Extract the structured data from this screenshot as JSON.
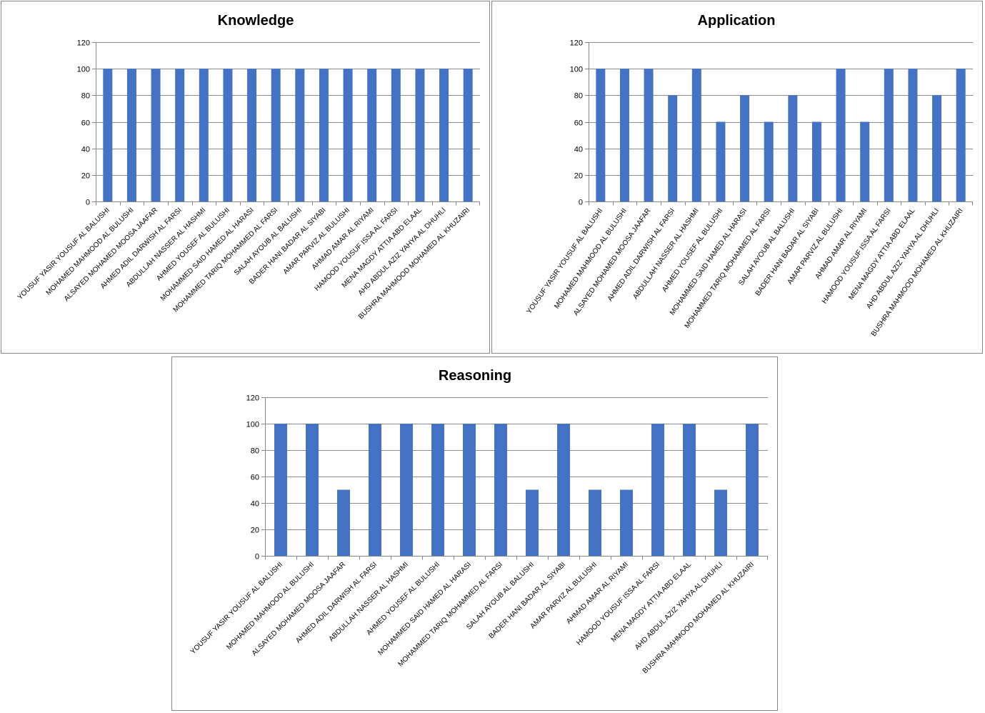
{
  "chart_data": [
    {
      "type": "bar",
      "title": "Knowledge",
      "xlabel": "",
      "ylabel": "",
      "ylim": [
        0,
        120
      ],
      "yticks": [
        0,
        20,
        40,
        60,
        80,
        100,
        120
      ],
      "grid": true,
      "color": "#4472c4",
      "categories": [
        "YOUSUF YASIR YOUSUF AL BALUSHI",
        "MOHAMED MAHMOOD AL BULUSHI",
        "ALSAYED MOHAMED  MOOSA JAAFAR",
        "AHMED ADIL DARWISH  AL FARSI",
        "ABDULLAH NASSER AL HASHMI",
        "AHMED YOUSEF  AL BULUSHI",
        "MOHAMMED SAID HAMED AL HARASI",
        "MOHAMMED TARIQ MOHAMMED AL FARSI",
        "SALAH AYOUB  AL BALUSHI",
        "BADER HANI BADAR  AL SIYABI",
        "AMAR PARVIZ  AL BULUSHI",
        "AHMAD AMAR  AL RIYAMI",
        "HAMOOD YOUSUF ISSA AL FARSI",
        "MENA MAGDY ATTIA  ABD  ELAAL",
        "AHD ABDUL AZIZ YAHYA  AL DHUHLI",
        "BUSHRA MAHMOOD MOHAMED AL KHUZAIRI"
      ],
      "values": [
        100,
        100,
        100,
        100,
        100,
        100,
        100,
        100,
        100,
        100,
        100,
        100,
        100,
        100,
        100,
        100
      ]
    },
    {
      "type": "bar",
      "title": "Application",
      "xlabel": "",
      "ylabel": "",
      "ylim": [
        0,
        120
      ],
      "yticks": [
        0,
        20,
        40,
        60,
        80,
        100,
        120
      ],
      "grid": true,
      "color": "#4472c4",
      "categories": [
        "YOUSUF YASIR YOUSUF AL BALUSHI",
        "MOHAMED MAHMOOD AL BULUSHI",
        "ALSAYED MOHAMED  MOOSA JAAFAR",
        "AHMED ADIL DARWISH  AL FARSI",
        "ABDULLAH NASSER AL HASHMI",
        "AHMED YOUSEF  AL BULUSHI",
        "MOHAMMED SAID HAMED AL HARASI",
        "MOHAMMED TARIQ MOHAMMED AL FARSI",
        "SALAH AYOUB  AL BALUSHI",
        "BADER HANI BADAR  AL SIYABI",
        "AMAR PARVIZ  AL BULUSHI",
        "AHMAD AMAR  AL RIYAMI",
        "HAMOOD YOUSUF ISSA AL FARSI",
        "MENA MAGDY ATTIA  ABD  ELAAL",
        "AHD ABDUL AZIZ YAHYA  AL DHUHLI",
        "BUSHRA MAHMOOD MOHAMED AL KHUZAIRI"
      ],
      "values": [
        100,
        100,
        100,
        80,
        100,
        60,
        80,
        60,
        80,
        60,
        100,
        60,
        100,
        100,
        80,
        100
      ]
    },
    {
      "type": "bar",
      "title": "Reasoning",
      "xlabel": "",
      "ylabel": "",
      "ylim": [
        0,
        120
      ],
      "yticks": [
        0,
        20,
        40,
        60,
        80,
        100,
        120
      ],
      "grid": true,
      "color": "#4472c4",
      "categories": [
        "YOUSUF YASIR YOUSUF AL BALUSHI",
        "MOHAMED MAHMOOD AL BULUSHI",
        "ALSAYED MOHAMED  MOOSA JAAFAR",
        "AHMED ADIL DARWISH  AL FARSI",
        "ABDULLAH NASSER AL HASHMI",
        "AHMED YOUSEF  AL BULUSHI",
        "MOHAMMED SAID HAMED AL HARASI",
        "MOHAMMED TARIQ MOHAMMED AL FARSI",
        "SALAH AYOUB  AL BALUSHI",
        "BADER HANI BADAR  AL SIYABI",
        "AMAR PARVIZ  AL BULUSHI",
        "AHMAD AMAR  AL RIYAMI",
        "HAMOOD YOUSUF  ISSA AL FARSI",
        "MENA MAGDY ATTIA  ABD  ELAAL",
        "AHD ABDUL AZIZ  YAHYA  AL DHUHLI",
        "BUSHRA MAHMOOD MOHAMED AL KHUZAIRI"
      ],
      "values": [
        100,
        100,
        50,
        100,
        100,
        100,
        100,
        100,
        50,
        100,
        50,
        50,
        100,
        100,
        50,
        100
      ]
    }
  ]
}
